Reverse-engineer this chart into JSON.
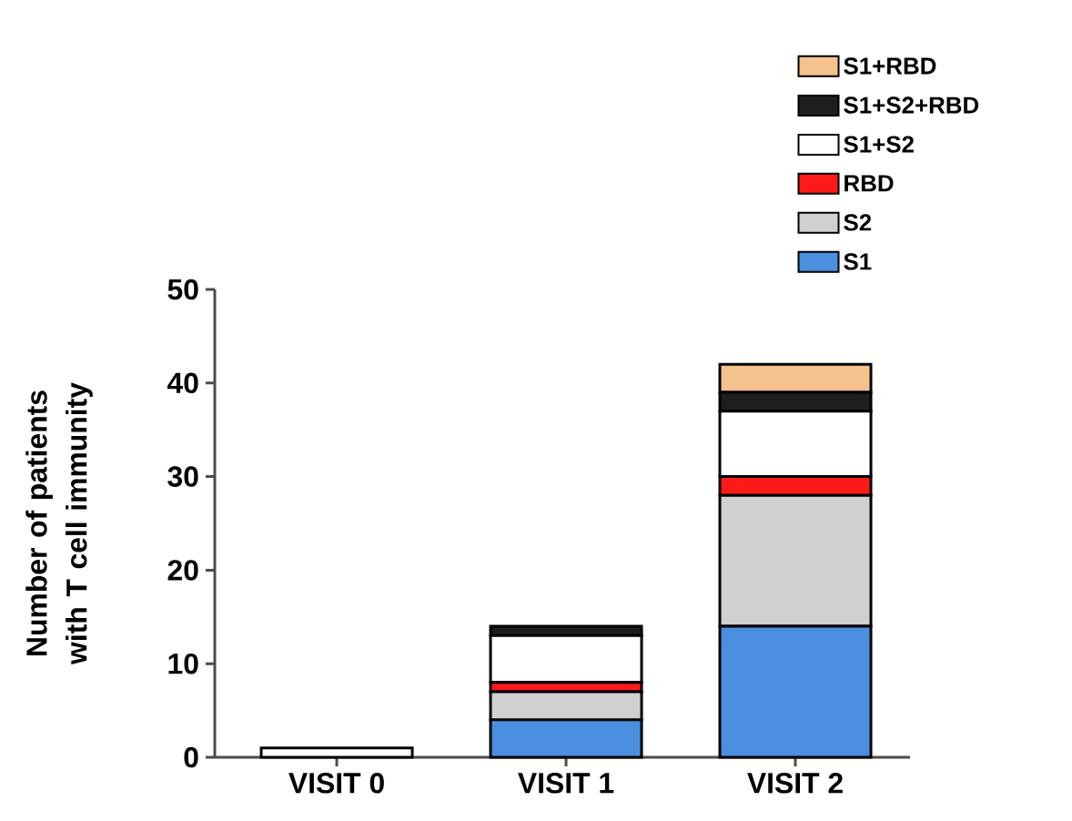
{
  "chart_data": {
    "type": "bar",
    "stacked": true,
    "ylabel": "Number of patients with T cell immunity",
    "categories": [
      "VISIT 0",
      "VISIT 1",
      "VISIT 2"
    ],
    "ylim": [
      0,
      50
    ],
    "yticks": [
      0,
      10,
      20,
      30,
      40,
      50
    ],
    "legend": "top right",
    "grid": false,
    "series": [
      {
        "name": "S1",
        "color": "#4a8fe0",
        "values": [
          0,
          4,
          14
        ]
      },
      {
        "name": "S2",
        "color": "#d0d0d0",
        "values": [
          0,
          3,
          14
        ]
      },
      {
        "name": "RBD",
        "color": "#ff1a1a",
        "values": [
          0,
          1,
          2
        ]
      },
      {
        "name": "S1+S2",
        "color": "#ffffff",
        "values": [
          1,
          5,
          7
        ]
      },
      {
        "name": "S1+S2+RBD",
        "color": "#1e1e1e",
        "values": [
          0,
          1,
          2
        ]
      },
      {
        "name": "S1+RBD",
        "color": "#f5c18c",
        "values": [
          0,
          0,
          3
        ]
      }
    ]
  }
}
